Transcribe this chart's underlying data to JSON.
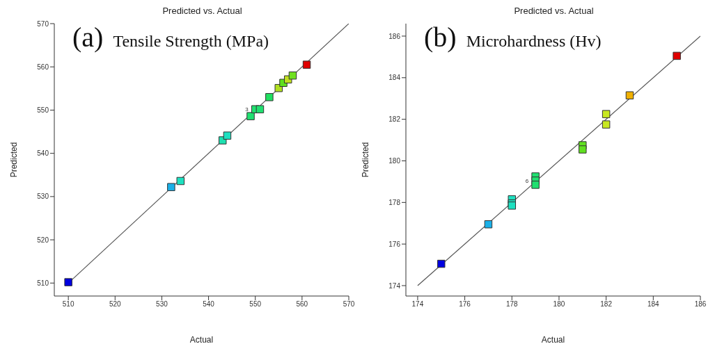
{
  "chart_data": [
    {
      "type": "scatter",
      "title": "Predicted vs. Actual",
      "xlabel": "Actual",
      "ylabel": "Predicted",
      "xlim": [
        507,
        570
      ],
      "ylim": [
        507,
        570
      ],
      "xticks": [
        510,
        520,
        530,
        540,
        550,
        560,
        570
      ],
      "yticks": [
        510,
        520,
        530,
        540,
        550,
        560,
        570
      ],
      "grid": false,
      "legend": false,
      "annotations": [
        "(a)",
        "Tensile Strength (MPa)",
        {
          "text": "3",
          "x": 550,
          "y": 550.2
        }
      ],
      "series": [
        {
          "marker": "square",
          "x": [
            510,
            532,
            534,
            543,
            544,
            549,
            550,
            551,
            553,
            555,
            556,
            557,
            558,
            561
          ],
          "values": [
            510.2,
            532.2,
            533.6,
            543,
            544.1,
            548.6,
            550.2,
            550.2,
            553,
            555.1,
            556.3,
            557.1,
            558,
            560.5
          ],
          "colors": [
            "#0000e0",
            "#1ab0e8",
            "#1ee0c0",
            "#1ee0b0",
            "#1ee0c0",
            "#20e070",
            "#20e070",
            "#20e070",
            "#20e060",
            "#b0e020",
            "#60e020",
            "#c0e020",
            "#70e020",
            "#e00000"
          ]
        },
        {
          "type": "line",
          "x": [
            510,
            570
          ],
          "values": [
            510,
            570
          ],
          "color": "#555555"
        }
      ]
    },
    {
      "type": "scatter",
      "title": "Predicted vs. Actual",
      "xlabel": "Actual",
      "ylabel": "Predicted",
      "xlim": [
        173.5,
        186
      ],
      "ylim": [
        173.5,
        186.6
      ],
      "xticks": [
        174,
        176,
        178,
        180,
        182,
        184,
        186
      ],
      "yticks": [
        174,
        176,
        178,
        180,
        182,
        184,
        186
      ],
      "grid": false,
      "legend": false,
      "annotations": [
        "(b)",
        "Microhardness (Hv)",
        {
          "text": "6",
          "x": 179,
          "y": 179.05
        }
      ],
      "series": [
        {
          "marker": "square",
          "x": [
            175,
            177,
            178,
            178,
            178,
            179,
            179,
            179,
            181,
            181,
            182,
            182,
            183,
            185
          ],
          "values": [
            175.05,
            176.95,
            178.15,
            177.95,
            177.85,
            179.25,
            179.05,
            178.85,
            180.75,
            180.55,
            182.25,
            181.75,
            183.15,
            185.05
          ],
          "colors": [
            "#0000e0",
            "#1ab0e8",
            "#1ee0c0",
            "#1ee0c0",
            "#1ee0c0",
            "#20e070",
            "#20e070",
            "#20e070",
            "#60e020",
            "#60e020",
            "#c8e820",
            "#c8e820",
            "#f0b000",
            "#e00000"
          ]
        },
        {
          "type": "line",
          "x": [
            174,
            186
          ],
          "values": [
            174,
            186
          ],
          "color": "#555555"
        }
      ]
    }
  ]
}
